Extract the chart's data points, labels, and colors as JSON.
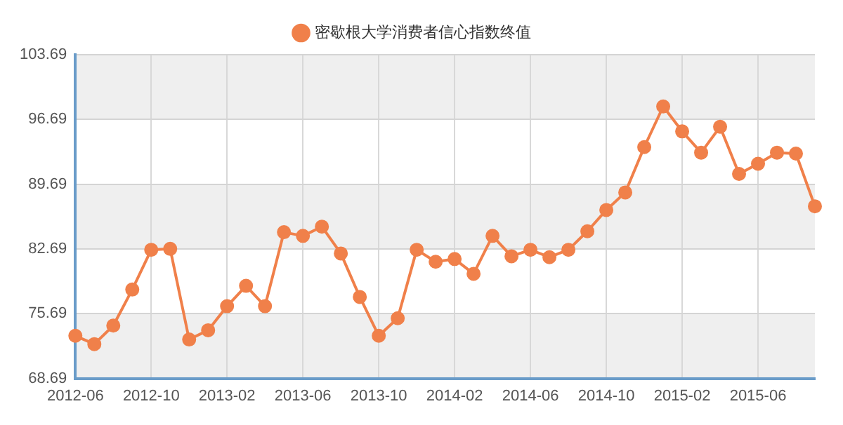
{
  "chart_data": {
    "type": "line",
    "categories": [
      "2012-06",
      null,
      null,
      null,
      "2012-10",
      null,
      null,
      null,
      "2013-02",
      null,
      null,
      null,
      "2013-06",
      null,
      null,
      null,
      "2013-10",
      null,
      null,
      null,
      "2014-02",
      null,
      null,
      null,
      "2014-06",
      null,
      null,
      null,
      "2014-10",
      null,
      null,
      null,
      "2015-02",
      null,
      null,
      null,
      "2015-06",
      null,
      null,
      null
    ],
    "series": [
      {
        "name": "密歇根大学消费者信心指数终值",
        "color": "#f0804a",
        "values": [
          73.3,
          72.4,
          74.4,
          78.3,
          82.6,
          82.7,
          72.9,
          73.9,
          76.5,
          78.7,
          76.5,
          84.5,
          84.1,
          85.1,
          82.2,
          77.5,
          73.3,
          75.2,
          82.6,
          81.3,
          81.6,
          80.0,
          84.1,
          81.9,
          82.6,
          81.8,
          82.6,
          84.6,
          86.9,
          88.8,
          93.7,
          98.1,
          95.4,
          93.1,
          95.9,
          90.8,
          91.9,
          93.1,
          93.0,
          87.3
        ]
      }
    ],
    "ylim": [
      68.69,
      103.69
    ],
    "yticks": [
      68.69,
      75.69,
      82.69,
      89.69,
      96.69,
      103.69
    ],
    "grid": true,
    "legend": "top",
    "marker": "circle",
    "line_style": "solid"
  }
}
